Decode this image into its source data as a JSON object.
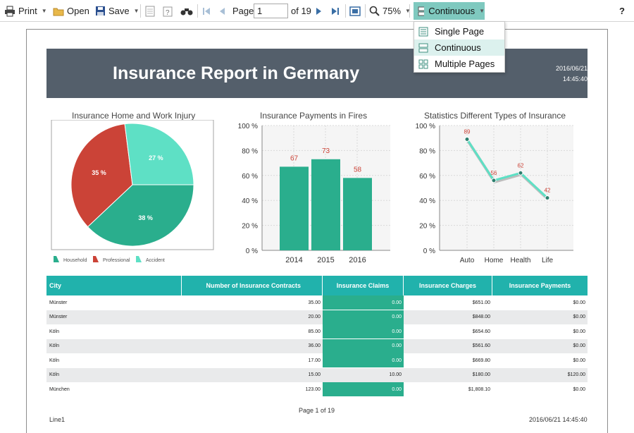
{
  "toolbar": {
    "print_label": "Print",
    "open_label": "Open",
    "save_label": "Save",
    "page_label": "Page",
    "page_value": "1",
    "page_of": "of 19",
    "zoom_label": "75%",
    "view_label": "Continuous",
    "help_label": "?"
  },
  "view_menu": {
    "items": [
      {
        "label": "Single Page"
      },
      {
        "label": "Continuous"
      },
      {
        "label": "Multiple Pages"
      }
    ],
    "selected": "Continuous"
  },
  "report": {
    "title": "Insurance Report in Germany",
    "date": "2016/06/21",
    "time": "14:45:40"
  },
  "colors": {
    "teal": "#21b2ac",
    "green": "#2aae8d",
    "mint": "#5ee0c5",
    "red": "#cb4337",
    "banner": "#545f6b"
  },
  "chart_data": [
    {
      "type": "pie",
      "title": "Insurance Home and Work Injury",
      "categories": [
        "Household",
        "Professional",
        "Accident"
      ],
      "values": [
        38,
        35,
        27
      ],
      "labels": [
        "38 %",
        "35 %",
        "27 %"
      ]
    },
    {
      "type": "bar",
      "title": "Insurance Payments in Fires",
      "categories": [
        "2014",
        "2015",
        "2016"
      ],
      "values": [
        67,
        73,
        58
      ],
      "ylim": [
        0,
        100
      ],
      "yticks": [
        "0 %",
        "20 %",
        "40 %",
        "60 %",
        "80 %",
        "100 %"
      ]
    },
    {
      "type": "line",
      "title": "Statistics Different Types of Insurance",
      "categories": [
        "Auto",
        "Home",
        "Health",
        "Life"
      ],
      "values": [
        89,
        56,
        62,
        42
      ],
      "ylim": [
        0,
        100
      ],
      "yticks": [
        "0 %",
        "20 %",
        "40 %",
        "60 %",
        "80 %",
        "100 %"
      ]
    }
  ],
  "table": {
    "headers": [
      "City",
      "Number of Insurance Contracts",
      "Insurance Claims",
      "Insurance Charges",
      "Insurance Payments"
    ],
    "rows": [
      [
        "Münster",
        "35.00",
        "0.00",
        "$651.00",
        "$0.00"
      ],
      [
        "Münster",
        "20.00",
        "0.00",
        "$848.00",
        "$0.00"
      ],
      [
        "Köln",
        "85.00",
        "0.00",
        "$654.60",
        "$0.00"
      ],
      [
        "Köln",
        "36.00",
        "0.00",
        "$561.60",
        "$0.00"
      ],
      [
        "Köln",
        "17.00",
        "0.00",
        "$669.80",
        "$0.00"
      ],
      [
        "Köln",
        "15.00",
        "10.00",
        "$180.00",
        "$120.00"
      ],
      [
        "München",
        "123.00",
        "0.00",
        "$1,808.10",
        "$0.00"
      ]
    ]
  },
  "footer": {
    "page": "Page 1 of 19",
    "left": "Line1",
    "right": "2016/06/21 14:45:40"
  }
}
